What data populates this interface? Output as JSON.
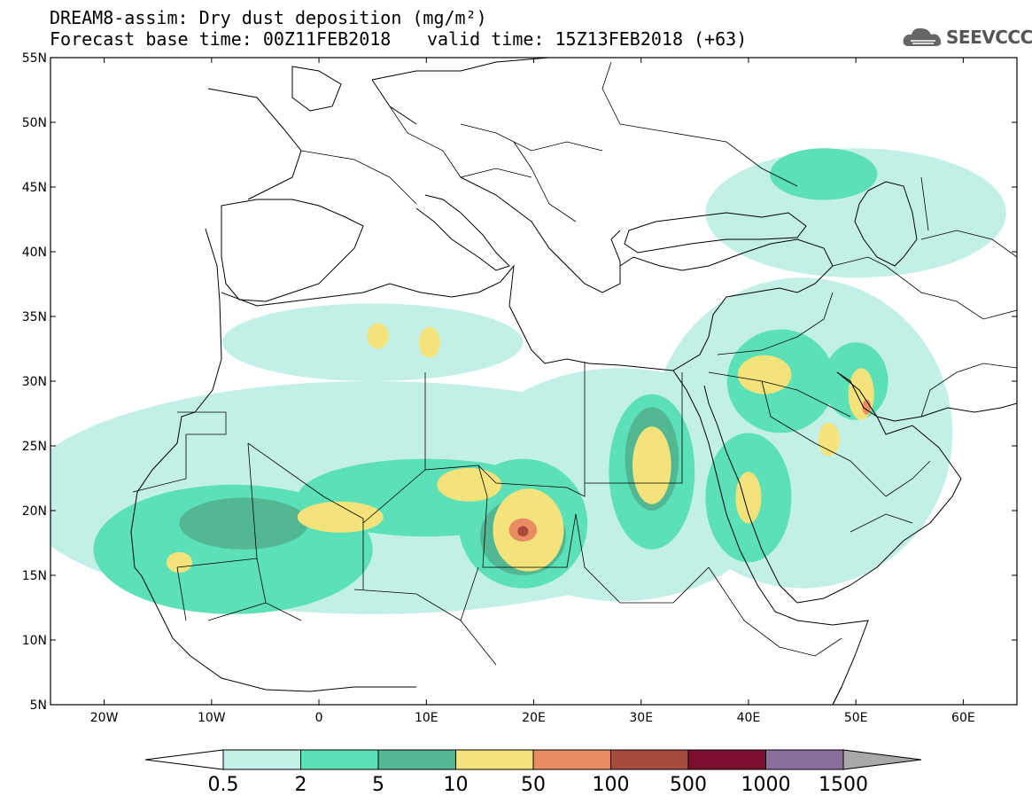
{
  "title": {
    "line1": "DREAM8-assim: Dry dust deposition (mg/m²)",
    "line2_base": "Forecast base time: 00Z11FEB2018",
    "line2_valid": "valid time: 15Z13FEB2018 (+63)"
  },
  "logo": {
    "text": "SEEVCCC",
    "icon": "cloud-icon"
  },
  "axes": {
    "lon_labels": [
      "20W",
      "10W",
      "0",
      "10E",
      "20E",
      "30E",
      "40E",
      "50E",
      "60E"
    ],
    "lat_labels": [
      "55N",
      "50N",
      "45N",
      "40N",
      "35N",
      "30N",
      "25N",
      "20N",
      "15N",
      "10N",
      "5N"
    ],
    "lon_range": [
      -25,
      65
    ],
    "lat_range": [
      5,
      55
    ]
  },
  "colorbar": {
    "labels": [
      "0.5",
      "2",
      "5",
      "10",
      "50",
      "100",
      "500",
      "1000",
      "1500"
    ],
    "colors": [
      "#c2f0e6",
      "#5be0b7",
      "#52b893",
      "#f4e37a",
      "#e98c63",
      "#a84a3c",
      "#7a0f2e",
      "#8a6e9e"
    ],
    "under_color": "#ffffff",
    "over_color": "#a8a8a8"
  },
  "dust_regions": [
    {
      "level": 0,
      "lon": 5,
      "lat": 21,
      "rx": 33,
      "ry": 9
    },
    {
      "level": 0,
      "lon": 28,
      "lat": 22,
      "rx": 15,
      "ry": 9
    },
    {
      "level": 0,
      "lon": 45,
      "lat": 26,
      "rx": 14,
      "ry": 12
    },
    {
      "level": 0,
      "lon": 50,
      "lat": 43,
      "rx": 14,
      "ry": 5
    },
    {
      "level": 0,
      "lon": 5,
      "lat": 33,
      "rx": 14,
      "ry": 3
    },
    {
      "level": 1,
      "lon": -8,
      "lat": 17,
      "rx": 13,
      "ry": 5
    },
    {
      "level": 1,
      "lon": 10,
      "lat": 21,
      "rx": 12,
      "ry": 3
    },
    {
      "level": 1,
      "lon": 19,
      "lat": 19,
      "rx": 6,
      "ry": 5
    },
    {
      "level": 1,
      "lon": 31,
      "lat": 23,
      "rx": 4,
      "ry": 6
    },
    {
      "level": 1,
      "lon": 43,
      "lat": 30,
      "rx": 5,
      "ry": 4
    },
    {
      "level": 1,
      "lon": 40,
      "lat": 21,
      "rx": 4,
      "ry": 5
    },
    {
      "level": 1,
      "lon": 50,
      "lat": 30,
      "rx": 3,
      "ry": 3
    },
    {
      "level": 1,
      "lon": 47,
      "lat": 46,
      "rx": 5,
      "ry": 2
    },
    {
      "level": 2,
      "lon": -7,
      "lat": 19,
      "rx": 6,
      "ry": 2
    },
    {
      "level": 2,
      "lon": 19,
      "lat": 18,
      "rx": 4,
      "ry": 3
    },
    {
      "level": 2,
      "lon": 31,
      "lat": 24,
      "rx": 2.5,
      "ry": 4
    },
    {
      "level": 3,
      "lon": 2,
      "lat": 19.5,
      "rx": 4,
      "ry": 1.2
    },
    {
      "level": 3,
      "lon": 14,
      "lat": 22,
      "rx": 3,
      "ry": 1.3
    },
    {
      "level": 3,
      "lon": 19.5,
      "lat": 18.5,
      "rx": 3.3,
      "ry": 3.2
    },
    {
      "level": 3,
      "lon": 31,
      "lat": 23.5,
      "rx": 1.8,
      "ry": 3
    },
    {
      "level": 3,
      "lon": 41.5,
      "lat": 30.5,
      "rx": 2.5,
      "ry": 1.5
    },
    {
      "level": 3,
      "lon": 40,
      "lat": 21,
      "rx": 1.2,
      "ry": 2
    },
    {
      "level": 3,
      "lon": 50.5,
      "lat": 29,
      "rx": 1.2,
      "ry": 2
    },
    {
      "level": 3,
      "lon": 47.5,
      "lat": 25.5,
      "rx": 1,
      "ry": 1.3
    },
    {
      "level": 3,
      "lon": 5.5,
      "lat": 33.5,
      "rx": 1,
      "ry": 1
    },
    {
      "level": 3,
      "lon": 10.3,
      "lat": 33,
      "rx": 1,
      "ry": 1.2
    },
    {
      "level": 3,
      "lon": -13,
      "lat": 16,
      "rx": 1.2,
      "ry": 0.8
    },
    {
      "level": 4,
      "lon": 19,
      "lat": 18.5,
      "rx": 1.3,
      "ry": 0.9
    },
    {
      "level": 4,
      "lon": 51,
      "lat": 28,
      "rx": 0.4,
      "ry": 0.6
    },
    {
      "level": 5,
      "lon": 19,
      "lat": 18.4,
      "rx": 0.5,
      "ry": 0.4
    }
  ]
}
